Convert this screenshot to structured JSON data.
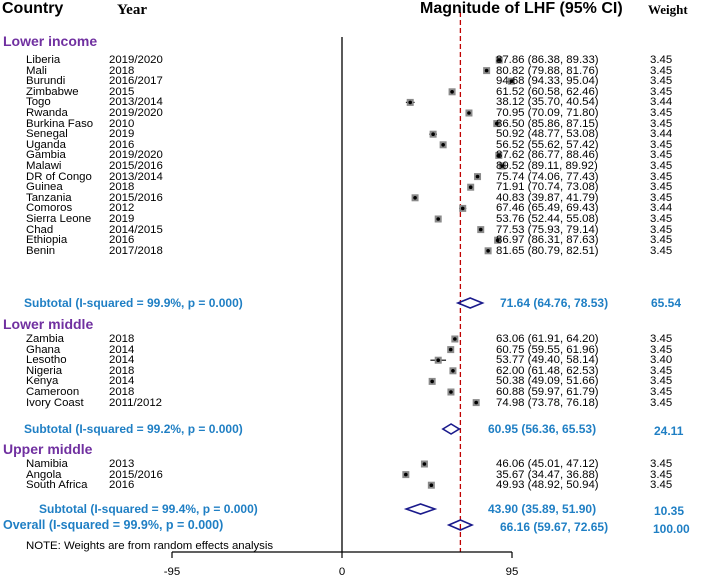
{
  "header": {
    "country": "Country",
    "year": "Year",
    "magnitude": "Magnitude of LHF (95% CI)",
    "weight": "Weight"
  },
  "groups": [
    {
      "name": "Lower income",
      "rows": [
        {
          "country": "Liberia",
          "year": "2019/2020",
          "est": 87.86,
          "lo": 86.38,
          "hi": 89.33,
          "label": "87.86 (86.38, 89.33)",
          "weight": "3.45"
        },
        {
          "country": "Mali",
          "year": "2018",
          "est": 80.82,
          "lo": 79.88,
          "hi": 81.76,
          "label": "80.82 (79.88, 81.76)",
          "weight": "3.45"
        },
        {
          "country": "Burundi",
          "year": "2016/2017",
          "est": 94.68,
          "lo": 94.33,
          "hi": 95.04,
          "label": "94.68 (94.33, 95.04)",
          "weight": "3.45"
        },
        {
          "country": "Zimbabwe",
          "year": "2015",
          "est": 61.52,
          "lo": 60.58,
          "hi": 62.46,
          "label": "61.52 (60.58, 62.46)",
          "weight": "3.45"
        },
        {
          "country": "Togo",
          "year": "2013/2014",
          "est": 38.12,
          "lo": 35.7,
          "hi": 40.54,
          "label": "38.12 (35.70, 40.54)",
          "weight": "3.44"
        },
        {
          "country": "Rwanda",
          "year": "2019/2020",
          "est": 70.95,
          "lo": 70.09,
          "hi": 71.8,
          "label": "70.95 (70.09, 71.80)",
          "weight": "3.45"
        },
        {
          "country": "Burkina Faso",
          "year": "2010",
          "est": 86.5,
          "lo": 85.86,
          "hi": 87.15,
          "label": "86.50 (85.86, 87.15)",
          "weight": "3.45"
        },
        {
          "country": "Senegal",
          "year": "2019",
          "est": 50.92,
          "lo": 48.77,
          "hi": 53.08,
          "label": "50.92 (48.77, 53.08)",
          "weight": "3.44"
        },
        {
          "country": "Uganda",
          "year": "2016",
          "est": 56.52,
          "lo": 55.62,
          "hi": 57.42,
          "label": "56.52 (55.62, 57.42)",
          "weight": "3.45"
        },
        {
          "country": "Gambia",
          "year": "2019/2020",
          "est": 87.62,
          "lo": 86.77,
          "hi": 88.46,
          "label": "87.62 (86.77, 88.46)",
          "weight": "3.45"
        },
        {
          "country": "Malawi",
          "year": "2015/2016",
          "est": 89.52,
          "lo": 89.11,
          "hi": 89.92,
          "label": "89.52 (89.11, 89.92)",
          "weight": "3.45"
        },
        {
          "country": "DR of Congo",
          "year": "2013/2014",
          "est": 75.74,
          "lo": 74.06,
          "hi": 77.43,
          "label": "75.74 (74.06, 77.43)",
          "weight": "3.45"
        },
        {
          "country": "Guinea",
          "year": "2018",
          "est": 71.91,
          "lo": 70.74,
          "hi": 73.08,
          "label": "71.91 (70.74, 73.08)",
          "weight": "3.45"
        },
        {
          "country": "Tanzania",
          "year": "2015/2016",
          "est": 40.83,
          "lo": 39.87,
          "hi": 41.79,
          "label": "40.83 (39.87, 41.79)",
          "weight": "3.45"
        },
        {
          "country": "Comoros",
          "year": "2012",
          "est": 67.46,
          "lo": 65.49,
          "hi": 69.43,
          "label": "67.46 (65.49, 69.43)",
          "weight": "3.44"
        },
        {
          "country": "Sierra Leone",
          "year": "2019",
          "est": 53.76,
          "lo": 52.44,
          "hi": 55.08,
          "label": "53.76 (52.44, 55.08)",
          "weight": "3.45"
        },
        {
          "country": "Chad",
          "year": "2014/2015",
          "est": 77.53,
          "lo": 75.93,
          "hi": 79.14,
          "label": "77.53 (75.93, 79.14)",
          "weight": "3.45"
        },
        {
          "country": "Ethiopia",
          "year": "2016",
          "est": 86.97,
          "lo": 86.31,
          "hi": 87.63,
          "label": "86.97 (86.31, 87.63)",
          "weight": "3.45"
        },
        {
          "country": "Benin",
          "year": "2017/2018",
          "est": 81.65,
          "lo": 80.79,
          "hi": 82.51,
          "label": "81.65 (80.79, 82.51)",
          "weight": "3.45"
        }
      ],
      "subtotal": {
        "label": "Subtotal (I-squared = 99.9%, p = 0.000)",
        "est": 71.64,
        "lo": 64.76,
        "hi": 78.53,
        "ci": "71.64 (64.76, 78.53)",
        "weight": "65.54"
      }
    },
    {
      "name": "Lower middle",
      "rows": [
        {
          "country": "Zambia",
          "year": "2018",
          "est": 63.06,
          "lo": 61.91,
          "hi": 64.2,
          "label": "63.06 (61.91, 64.20)",
          "weight": "3.45"
        },
        {
          "country": "Ghana",
          "year": "2014",
          "est": 60.75,
          "lo": 59.55,
          "hi": 61.96,
          "label": "60.75 (59.55, 61.96)",
          "weight": "3.45"
        },
        {
          "country": "Lesotho",
          "year": "2014",
          "est": 53.77,
          "lo": 49.4,
          "hi": 58.14,
          "label": "53.77 (49.40, 58.14)",
          "weight": "3.40"
        },
        {
          "country": "Nigeria",
          "year": "2018",
          "est": 62.0,
          "lo": 61.48,
          "hi": 62.53,
          "label": "62.00 (61.48, 62.53)",
          "weight": "3.45"
        },
        {
          "country": "Kenya",
          "year": "2014",
          "est": 50.38,
          "lo": 49.09,
          "hi": 51.66,
          "label": "50.38 (49.09, 51.66)",
          "weight": "3.45"
        },
        {
          "country": "Cameroon",
          "year": "2018",
          "est": 60.88,
          "lo": 59.97,
          "hi": 61.79,
          "label": "60.88 (59.97, 61.79)",
          "weight": "3.45"
        },
        {
          "country": "Ivory Coast",
          "year": "2011/2012",
          "est": 74.98,
          "lo": 73.78,
          "hi": 76.18,
          "label": "74.98 (73.78, 76.18)",
          "weight": "3.45"
        }
      ],
      "subtotal": {
        "label": "Subtotal (I-squared = 99.2%, p = 0.000)",
        "est": 60.95,
        "lo": 56.36,
        "hi": 65.53,
        "ci": "60.95 (56.36, 65.53)",
        "weight": "24.11"
      }
    },
    {
      "name": "Upper middle",
      "rows": [
        {
          "country": "Namibia",
          "year": "2013",
          "est": 46.06,
          "lo": 45.01,
          "hi": 47.12,
          "label": "46.06 (45.01, 47.12)",
          "weight": "3.45"
        },
        {
          "country": "Angola",
          "year": "2015/2016",
          "est": 35.67,
          "lo": 34.47,
          "hi": 36.88,
          "label": "35.67 (34.47, 36.88)",
          "weight": "3.45"
        },
        {
          "country": "South Africa",
          "year": "2016",
          "est": 49.93,
          "lo": 48.92,
          "hi": 50.94,
          "label": "49.93 (48.92, 50.94)",
          "weight": "3.45"
        }
      ],
      "subtotal": {
        "label": "Subtotal (I-squared = 99.4%, p = 0.000)",
        "est": 43.9,
        "lo": 35.89,
        "hi": 51.9,
        "ci": "43.90 (35.89, 51.90)",
        "weight": "10.35"
      }
    }
  ],
  "overall": {
    "label": "Overall  (I-squared = 99.9%, p = 0.000)",
    "est": 66.16,
    "lo": 59.67,
    "hi": 72.65,
    "ci": "66.16 (59.67, 72.65)",
    "weight": "100.00"
  },
  "note": "NOTE: Weights are from random effects analysis",
  "chart_data": {
    "type": "forest",
    "title": "Magnitude of LHF (95% CI)",
    "xaxis_ticks": [
      -95,
      0,
      95
    ],
    "xaxis_tick_labels": [
      "-95",
      "0",
      "95"
    ],
    "xlim": [
      -95,
      95
    ],
    "null_line": 0,
    "overall_line": 66.16
  },
  "colors": {
    "group": "#7030a0",
    "subtotal": "#1f7fc4",
    "diamond": "#1a1a8c",
    "overall_line": "#c00000",
    "marker": "#000000"
  }
}
